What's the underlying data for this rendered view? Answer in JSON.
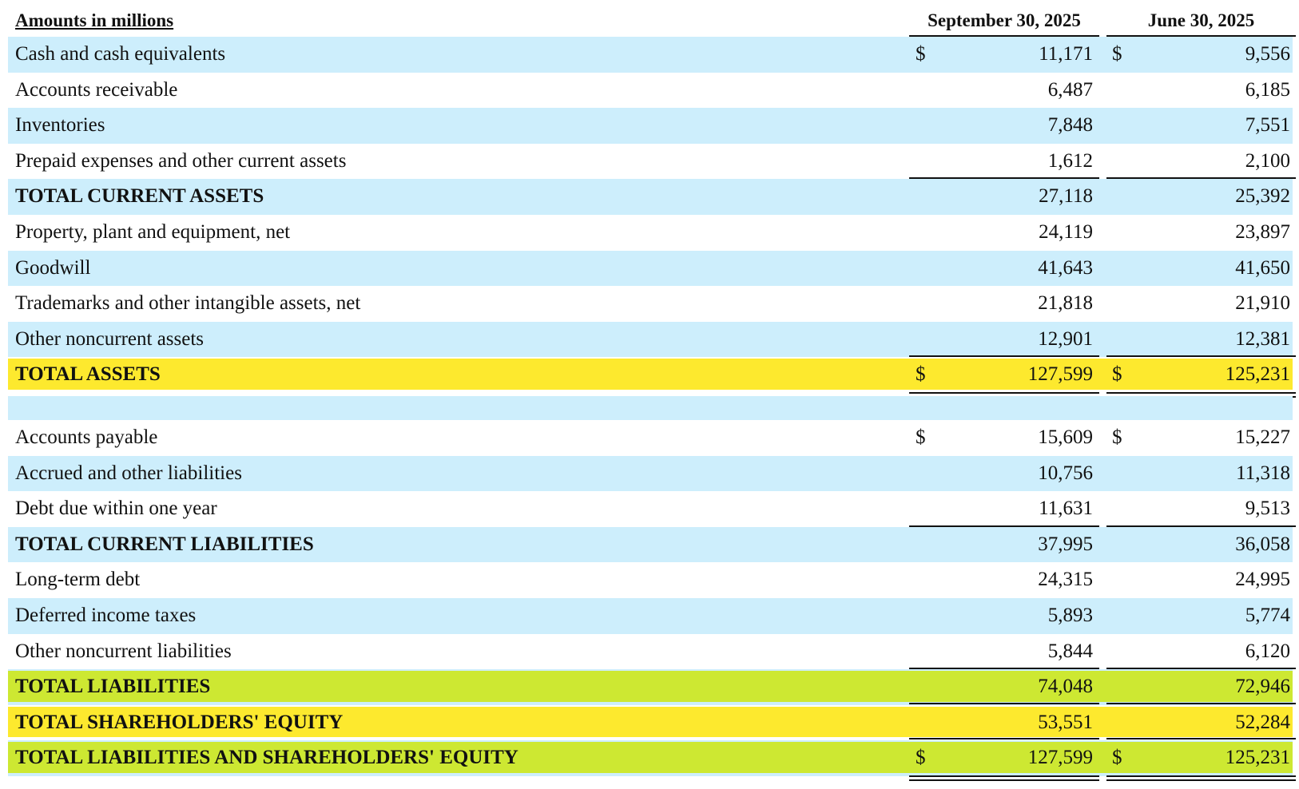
{
  "header": {
    "label": "Amounts in millions",
    "col1": "September 30, 2025",
    "col2": "June 30, 2025"
  },
  "rows": [
    {
      "label": "Cash and cash equivalents",
      "v1": "11,171",
      "v2": "9,556",
      "dollar": true
    },
    {
      "label": "Accounts receivable",
      "v1": "6,487",
      "v2": "6,185"
    },
    {
      "label": "Inventories",
      "v1": "7,848",
      "v2": "7,551"
    },
    {
      "label": "Prepaid expenses and other current assets",
      "v1": "1,612",
      "v2": "2,100"
    },
    {
      "label": "TOTAL CURRENT ASSETS",
      "v1": "27,118",
      "v2": "25,392"
    },
    {
      "label": "Property, plant and equipment, net",
      "v1": "24,119",
      "v2": "23,897"
    },
    {
      "label": "Goodwill",
      "v1": "41,643",
      "v2": "41,650"
    },
    {
      "label": "Trademarks and other intangible assets, net",
      "v1": "21,818",
      "v2": "21,910"
    },
    {
      "label": "Other noncurrent assets",
      "v1": "12,901",
      "v2": "12,381"
    },
    {
      "label": "TOTAL ASSETS",
      "v1": "127,599",
      "v2": "125,231",
      "dollar": true
    },
    {
      "label": "Accounts payable",
      "v1": "15,609",
      "v2": "15,227",
      "dollar": true
    },
    {
      "label": "Accrued and other liabilities",
      "v1": "10,756",
      "v2": "11,318"
    },
    {
      "label": "Debt due within one year",
      "v1": "11,631",
      "v2": "9,513"
    },
    {
      "label": "TOTAL CURRENT LIABILITIES",
      "v1": "37,995",
      "v2": "36,058"
    },
    {
      "label": "Long-term debt",
      "v1": "24,315",
      "v2": "24,995"
    },
    {
      "label": "Deferred income taxes",
      "v1": "5,893",
      "v2": "5,774"
    },
    {
      "label": "Other noncurrent liabilities",
      "v1": "5,844",
      "v2": "6,120"
    },
    {
      "label": "TOTAL LIABILITIES",
      "v1": "74,048",
      "v2": "72,946"
    },
    {
      "label": "TOTAL SHAREHOLDERS' EQUITY",
      "v1": "53,551",
      "v2": "52,284"
    },
    {
      "label": "TOTAL LIABILITIES AND SHAREHOLDERS' EQUITY",
      "v1": "127,599",
      "v2": "125,231",
      "dollar": true
    }
  ],
  "currency_symbol": "$",
  "colors": {
    "row_blue": "#cdeefc",
    "highlight_yellow": "#fde92e",
    "highlight_green": "#cde832"
  }
}
